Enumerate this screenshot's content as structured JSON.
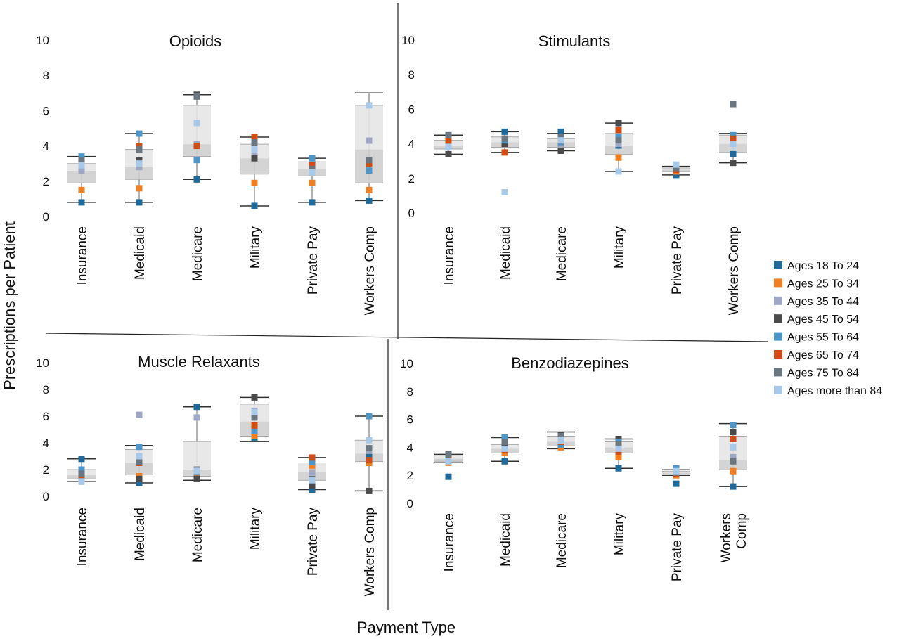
{
  "ylabel": "Prescriptions per Patient",
  "xlabel": "Payment Type",
  "series_names": [
    "Ages 18 To 24",
    "Ages 25 To 34",
    "Ages 35 To 44",
    "Ages 45 To 54",
    "Ages 55 To 64",
    "Ages 65 To 74",
    "Ages 75 To 84",
    "Ages more than 84"
  ],
  "series_colors": [
    "#1f6a9a",
    "#f07f24",
    "#9ea8c4",
    "#4a4a4a",
    "#4d96c7",
    "#d24d16",
    "#6b7780",
    "#a8c9e8"
  ],
  "legend_position": "right",
  "chart_data": [
    {
      "type": "box",
      "title": "Opioids",
      "categories": [
        "Insurance",
        "Medicaid",
        "Medicare",
        "Military",
        "Private Pay",
        "Workers Comp"
      ],
      "ylim": [
        0,
        10
      ],
      "yticks": [
        "0",
        "2",
        "4",
        "6",
        "8",
        "10"
      ],
      "boxes": [
        {
          "whisker_low": 0.8,
          "q1": 1.9,
          "median": 2.6,
          "q3": 3.0,
          "whisker_high": 3.4
        },
        {
          "whisker_low": 0.8,
          "q1": 2.1,
          "median": 2.8,
          "q3": 3.8,
          "whisker_high": 4.7
        },
        {
          "whisker_low": 2.1,
          "q1": 3.4,
          "median": 4.1,
          "q3": 6.3,
          "whisker_high": 6.9
        },
        {
          "whisker_low": 0.6,
          "q1": 2.4,
          "median": 3.3,
          "q3": 4.1,
          "whisker_high": 4.5
        },
        {
          "whisker_low": 0.8,
          "q1": 2.3,
          "median": 2.7,
          "q3": 3.1,
          "whisker_high": 3.3
        },
        {
          "whisker_low": 0.9,
          "q1": 1.9,
          "median": 3.8,
          "q3": 6.3,
          "whisker_high": 7.0
        }
      ],
      "series": [
        {
          "name": "Ages 18 To 24",
          "values": [
            0.8,
            0.8,
            2.1,
            0.6,
            0.8,
            0.9
          ]
        },
        {
          "name": "Ages 25 To 34",
          "values": [
            1.5,
            1.6,
            4.1,
            1.9,
            1.9,
            1.5
          ]
        },
        {
          "name": "Ages 35 To 44",
          "values": [
            2.6,
            2.8,
            4.1,
            3.5,
            2.7,
            4.3
          ]
        },
        {
          "name": "Ages 45 To 54",
          "values": [
            3.1,
            3.2,
            6.9,
            3.3,
            2.9,
            3.0
          ]
        },
        {
          "name": "Ages 55 To 64",
          "values": [
            3.4,
            4.7,
            3.2,
            4.3,
            3.3,
            2.6
          ]
        },
        {
          "name": "Ages 65 To 74",
          "values": [
            3.2,
            4.0,
            4.0,
            4.5,
            2.9,
            3.0
          ]
        },
        {
          "name": "Ages 75 To 84",
          "values": [
            3.2,
            3.8,
            6.8,
            4.2,
            2.7,
            3.2
          ]
        },
        {
          "name": "Ages more than 84",
          "values": [
            2.9,
            3.0,
            5.3,
            3.8,
            2.5,
            6.3
          ]
        }
      ]
    },
    {
      "type": "box",
      "title": "Stimulants",
      "categories": [
        "Insurance",
        "Medicaid",
        "Medicare",
        "Military",
        "Private Pay",
        "Workers Comp"
      ],
      "ylim": [
        0,
        10
      ],
      "yticks": [
        "0",
        "2",
        "4",
        "6",
        "8",
        "10"
      ],
      "boxes": [
        {
          "whisker_low": 3.4,
          "q1": 3.7,
          "median": 3.9,
          "q3": 4.2,
          "whisker_high": 4.5
        },
        {
          "whisker_low": 3.5,
          "q1": 3.8,
          "median": 4.1,
          "q3": 4.4,
          "whisker_high": 4.7
        },
        {
          "whisker_low": 3.6,
          "q1": 3.8,
          "median": 4.1,
          "q3": 4.3,
          "whisker_high": 4.6
        },
        {
          "whisker_low": 2.4,
          "q1": 3.4,
          "median": 3.9,
          "q3": 4.6,
          "whisker_high": 5.2
        },
        {
          "whisker_low": 2.2,
          "q1": 2.4,
          "median": 2.5,
          "q3": 2.6,
          "whisker_high": 2.7
        },
        {
          "whisker_low": 2.9,
          "q1": 3.5,
          "median": 4.0,
          "q3": 4.5,
          "whisker_high": 4.6
        }
      ],
      "series": [
        {
          "name": "Ages 18 To 24",
          "values": [
            4.0,
            4.7,
            4.7,
            3.9,
            2.2,
            3.4
          ]
        },
        {
          "name": "Ages 25 To 34",
          "values": [
            3.9,
            4.3,
            4.3,
            3.2,
            2.4,
            4.1
          ]
        },
        {
          "name": "Ages 35 To 44",
          "values": [
            4.1,
            4.1,
            4.0,
            4.0,
            2.6,
            4.2
          ]
        },
        {
          "name": "Ages 45 To 54",
          "values": [
            3.4,
            4.0,
            3.6,
            5.2,
            2.5,
            2.9
          ]
        },
        {
          "name": "Ages 55 To 64",
          "values": [
            4.3,
            4.2,
            4.1,
            4.4,
            2.7,
            4.5
          ]
        },
        {
          "name": "Ages 65 To 74",
          "values": [
            4.2,
            3.5,
            4.2,
            4.8,
            2.5,
            4.3
          ]
        },
        {
          "name": "Ages 75 To 84",
          "values": [
            4.5,
            4.3,
            4.4,
            4.2,
            2.6,
            6.3
          ]
        },
        {
          "name": "Ages more than 84",
          "values": [
            3.8,
            1.2,
            4.2,
            2.4,
            2.8,
            4.0
          ]
        }
      ]
    },
    {
      "type": "box",
      "title": "Muscle Relaxants",
      "categories": [
        "Insurance",
        "Medicaid",
        "Medicare",
        "Military",
        "Private Pay",
        "Workers Comp"
      ],
      "ylim": [
        0,
        10
      ],
      "yticks": [
        "0",
        "2",
        "4",
        "6",
        "8",
        "10"
      ],
      "boxes": [
        {
          "whisker_low": 1.1,
          "q1": 1.3,
          "median": 1.6,
          "q3": 2.0,
          "whisker_high": 2.8
        },
        {
          "whisker_low": 1.0,
          "q1": 1.6,
          "median": 2.5,
          "q3": 3.5,
          "whisker_high": 3.8
        },
        {
          "whisker_low": 1.2,
          "q1": 1.5,
          "median": 2.0,
          "q3": 4.1,
          "whisker_high": 6.7
        },
        {
          "whisker_low": 4.1,
          "q1": 4.5,
          "median": 5.6,
          "q3": 6.9,
          "whisker_high": 7.4
        },
        {
          "whisker_low": 0.5,
          "q1": 1.2,
          "median": 1.8,
          "q3": 2.5,
          "whisker_high": 2.9
        },
        {
          "whisker_low": 0.4,
          "q1": 2.6,
          "median": 3.2,
          "q3": 4.2,
          "whisker_high": 6.0
        }
      ],
      "series": [
        {
          "name": "Ages 18 To 24",
          "values": [
            2.8,
            1.0,
            6.7,
            4.4,
            0.5,
            3.1
          ]
        },
        {
          "name": "Ages 25 To 34",
          "values": [
            1.3,
            1.5,
            1.6,
            4.5,
            2.3,
            2.5
          ]
        },
        {
          "name": "Ages 35 To 44",
          "values": [
            1.5,
            6.1,
            5.9,
            6.4,
            1.8,
            3.4
          ]
        },
        {
          "name": "Ages 45 To 54",
          "values": [
            1.1,
            1.3,
            1.3,
            7.4,
            0.8,
            0.4
          ]
        },
        {
          "name": "Ages 55 To 64",
          "values": [
            2.0,
            3.7,
            1.8,
            4.9,
            2.6,
            6.0
          ]
        },
        {
          "name": "Ages 65 To 74",
          "values": [
            1.6,
            2.5,
            1.9,
            5.3,
            2.9,
            2.7
          ]
        },
        {
          "name": "Ages 75 To 84",
          "values": [
            1.7,
            2.6,
            2.0,
            5.9,
            1.3,
            3.6
          ]
        },
        {
          "name": "Ages more than 84",
          "values": [
            1.1,
            3.0,
            1.9,
            6.3,
            1.2,
            4.2
          ]
        }
      ]
    },
    {
      "type": "box",
      "title": "Benzodiazepines",
      "categories": [
        "Insurance",
        "Medicaid",
        "Medicare",
        "Military",
        "Private Pay",
        "Workers Comp"
      ],
      "ylim": [
        0,
        10
      ],
      "yticks": [
        "0",
        "2",
        "4",
        "6",
        "8",
        "10"
      ],
      "boxes": [
        {
          "whisker_low": 2.9,
          "q1": 3.0,
          "median": 3.2,
          "q3": 3.4,
          "whisker_high": 3.5
        },
        {
          "whisker_low": 3.0,
          "q1": 3.6,
          "median": 3.9,
          "q3": 4.2,
          "whisker_high": 4.7
        },
        {
          "whisker_low": 3.9,
          "q1": 4.1,
          "median": 4.4,
          "q3": 4.8,
          "whisker_high": 5.1
        },
        {
          "whisker_low": 2.5,
          "q1": 3.6,
          "median": 4.0,
          "q3": 4.4,
          "whisker_high": 4.6
        },
        {
          "whisker_low": 2.0,
          "q1": 2.0,
          "median": 2.2,
          "q3": 2.3,
          "whisker_high": 2.4
        },
        {
          "whisker_low": 1.2,
          "q1": 2.4,
          "median": 3.1,
          "q3": 4.8,
          "whisker_high": 5.7
        }
      ],
      "series": [
        {
          "name": "Ages 18 To 24",
          "values": [
            1.9,
            3.0,
            4.1,
            2.5,
            1.4,
            1.2
          ]
        },
        {
          "name": "Ages 25 To 34",
          "values": [
            2.9,
            3.6,
            4.0,
            3.3,
            2.0,
            2.3
          ]
        },
        {
          "name": "Ages 35 To 44",
          "values": [
            3.3,
            4.1,
            4.6,
            4.0,
            2.4,
            3.3
          ]
        },
        {
          "name": "Ages 45 To 54",
          "values": [
            3.1,
            4.2,
            4.9,
            4.6,
            2.3,
            5.1
          ]
        },
        {
          "name": "Ages 55 To 64",
          "values": [
            3.4,
            4.7,
            4.2,
            4.4,
            2.5,
            5.6
          ]
        },
        {
          "name": "Ages 65 To 74",
          "values": [
            3.2,
            3.8,
            4.4,
            3.7,
            2.1,
            4.6
          ]
        },
        {
          "name": "Ages 75 To 84",
          "values": [
            3.5,
            4.4,
            4.8,
            4.2,
            2.2,
            3.0
          ]
        },
        {
          "name": "Ages more than 84",
          "values": [
            3.0,
            3.9,
            4.5,
            3.9,
            2.3,
            4.0
          ]
        }
      ]
    }
  ]
}
